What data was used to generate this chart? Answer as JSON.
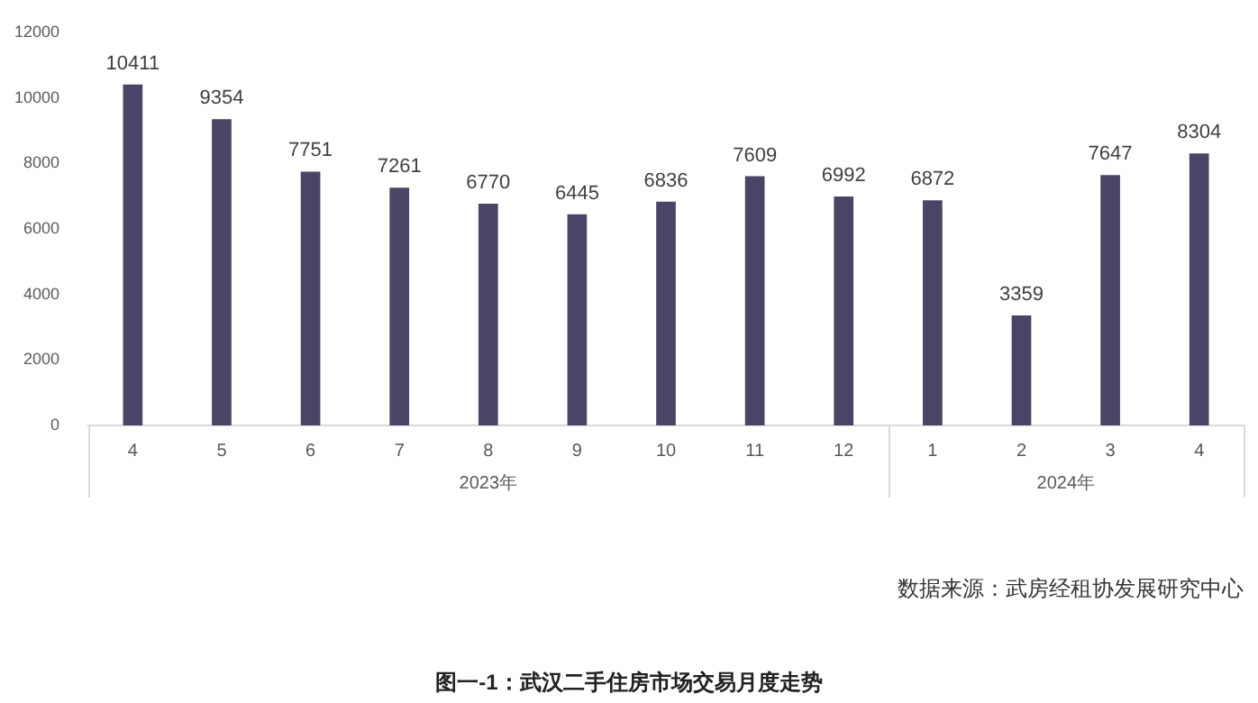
{
  "chart_data": {
    "type": "bar",
    "title": "图一-1：武汉二手住房市场交易月度走势",
    "categories": [
      "4",
      "5",
      "6",
      "7",
      "8",
      "9",
      "10",
      "11",
      "12",
      "1",
      "2",
      "3",
      "4"
    ],
    "values": [
      10411,
      9354,
      7751,
      7261,
      6770,
      6445,
      6836,
      7609,
      6992,
      6872,
      3359,
      7647,
      8304
    ],
    "color": "#4a4566",
    "ylim": [
      0,
      12000
    ],
    "yticks": [
      0,
      2000,
      4000,
      6000,
      8000,
      10000,
      12000
    ],
    "grid": false,
    "legend": false,
    "data_labels": true,
    "annotations": [
      "2023年",
      "2024年",
      "数据来源：武房经租协发展研究中心"
    ]
  }
}
